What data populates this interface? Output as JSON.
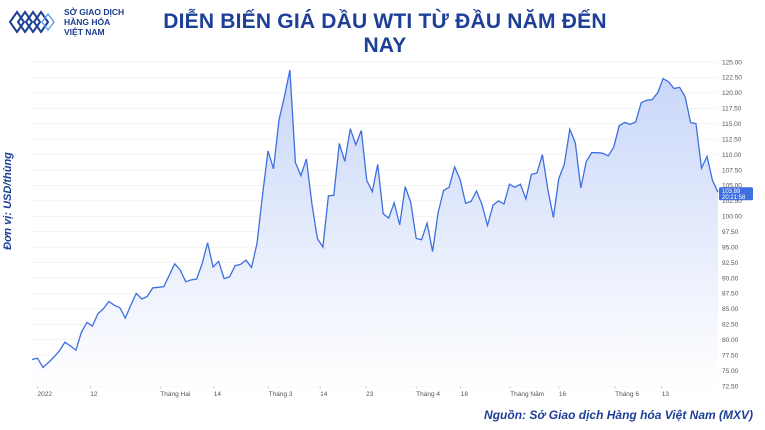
{
  "header": {
    "logo_line1": "SỞ GIAO DỊCH",
    "logo_line2": "HÀNG HÓA",
    "logo_line3": "VIỆT NAM",
    "title": "DIỄN BIẾN GIÁ DẦU WTI TỪ ĐẦU NĂM ĐẾN NAY"
  },
  "footer": {
    "source": "Nguồn: Sở Giao dịch Hàng hóa Việt Nam (MXV)"
  },
  "colors": {
    "line": "#3e6fe0",
    "area_top": "#c8d6f8",
    "area_bottom": "#ffffff",
    "title": "#1d3f97",
    "price_tag": "#3e6fe0"
  },
  "chart_data": {
    "type": "area",
    "title": "DIỄN BIẾN GIÁ DẦU WTI TỪ ĐẦU NĂM ĐẾN NAY",
    "ylabel": "Đơn vị: USD/thùng",
    "xlabel": "",
    "ylim": [
      72.5,
      125.0
    ],
    "yticks": [
      "72.50",
      "75.00",
      "77.50",
      "80.00",
      "82.50",
      "85.00",
      "87.50",
      "90.00",
      "92.50",
      "95.00",
      "97.50",
      "100.00",
      "102.50",
      "105.00",
      "107.50",
      "110.00",
      "112.50",
      "115.00",
      "117.50",
      "120.00",
      "122.50",
      "125.00"
    ],
    "x_tick_labels": [
      "2022",
      "12",
      "Tháng Hai",
      "14",
      "Tháng 3",
      "14",
      "23",
      "Tháng 4",
      "18",
      "Tháng Năm",
      "16",
      "Tháng 6",
      "13"
    ],
    "last_value_label": "103.89",
    "last_time_label": "20:21:58",
    "values": [
      76.8,
      77.0,
      75.5,
      76.3,
      77.2,
      78.2,
      79.6,
      79.0,
      78.3,
      81.2,
      82.8,
      82.2,
      84.2,
      85.0,
      86.2,
      85.6,
      85.2,
      83.5,
      85.6,
      87.5,
      86.6,
      87.0,
      88.4,
      88.5,
      88.6,
      90.4,
      92.3,
      91.3,
      89.4,
      89.7,
      89.8,
      92.3,
      95.7,
      91.8,
      92.7,
      89.9,
      90.2,
      92.0,
      92.2,
      92.9,
      91.7,
      95.6,
      103.4,
      110.6,
      107.7,
      115.6,
      119.4,
      123.7,
      108.7,
      106.6,
      109.3,
      102.0,
      96.4,
      95.0,
      103.3,
      103.4,
      111.8,
      108.9,
      114.2,
      111.6,
      113.9,
      105.8,
      104.0,
      108.4,
      100.4,
      99.7,
      102.2,
      98.6,
      104.8,
      102.3,
      96.4,
      96.2,
      98.9,
      94.3,
      100.6,
      104.2,
      104.7,
      108.0,
      106.0,
      102.1,
      102.4,
      104.1,
      101.9,
      98.5,
      101.8,
      102.5,
      102.0,
      105.2,
      104.7,
      105.2,
      102.8,
      106.8,
      107.0,
      110.0,
      104.3,
      99.8,
      106.1,
      108.4,
      114.1,
      111.9,
      104.6,
      108.9,
      110.3,
      110.3,
      110.2,
      109.8,
      111.2,
      114.7,
      115.2,
      114.9,
      115.3,
      118.4,
      118.8,
      118.9,
      120.0,
      122.3,
      121.8,
      120.7,
      120.9,
      119.4,
      115.2,
      115.0,
      107.8,
      109.7,
      105.8,
      103.9
    ]
  }
}
